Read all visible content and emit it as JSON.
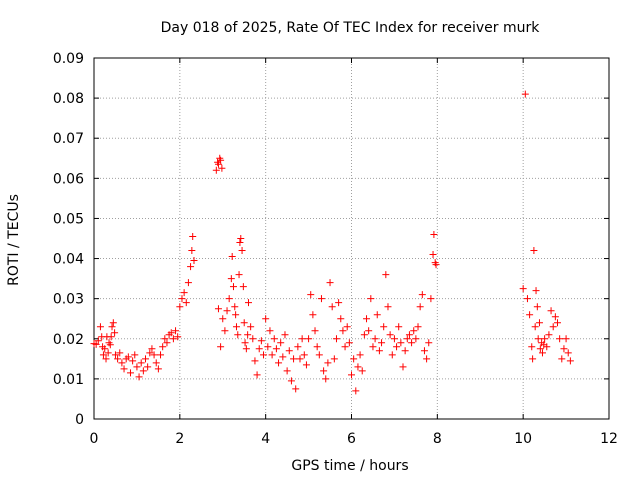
{
  "chart_data": {
    "type": "scatter",
    "title": "Day 018 of 2025, Rate Of TEC Index for receiver murk",
    "xlabel": "GPS time / hours",
    "ylabel": "ROTI / TECUs",
    "xlim": [
      0,
      12
    ],
    "ylim": [
      0,
      0.09
    ],
    "xticks": [
      0,
      2,
      4,
      6,
      8,
      10,
      12
    ],
    "yticks": [
      0,
      0.01,
      0.02,
      0.03,
      0.04,
      0.05,
      0.06,
      0.07,
      0.08,
      0.09
    ],
    "xtick_labels": [
      "0",
      "2",
      "4",
      "6",
      "8",
      "10",
      "12"
    ],
    "ytick_labels": [
      "0",
      "0.01",
      "0.02",
      "0.03",
      "0.04",
      "0.05",
      "0.06",
      "0.07",
      "0.08",
      "0.09"
    ],
    "grid": true,
    "marker": "+",
    "color": "#ff0000",
    "series": [
      {
        "name": "ROTI",
        "points": [
          [
            0.0,
            0.0188
          ],
          [
            0.05,
            0.0186
          ],
          [
            0.1,
            0.0195
          ],
          [
            0.15,
            0.023
          ],
          [
            0.18,
            0.0205
          ],
          [
            0.2,
            0.018
          ],
          [
            0.22,
            0.016
          ],
          [
            0.25,
            0.0175
          ],
          [
            0.28,
            0.015
          ],
          [
            0.3,
            0.0205
          ],
          [
            0.33,
            0.0165
          ],
          [
            0.35,
            0.019
          ],
          [
            0.38,
            0.0185
          ],
          [
            0.4,
            0.0205
          ],
          [
            0.42,
            0.023
          ],
          [
            0.45,
            0.024
          ],
          [
            0.48,
            0.0215
          ],
          [
            0.5,
            0.016
          ],
          [
            0.55,
            0.015
          ],
          [
            0.6,
            0.0165
          ],
          [
            0.65,
            0.014
          ],
          [
            0.7,
            0.0125
          ],
          [
            0.75,
            0.015
          ],
          [
            0.8,
            0.0155
          ],
          [
            0.85,
            0.0115
          ],
          [
            0.9,
            0.0145
          ],
          [
            0.95,
            0.016
          ],
          [
            1.0,
            0.013
          ],
          [
            1.05,
            0.0105
          ],
          [
            1.1,
            0.014
          ],
          [
            1.15,
            0.012
          ],
          [
            1.2,
            0.015
          ],
          [
            1.25,
            0.013
          ],
          [
            1.3,
            0.0165
          ],
          [
            1.35,
            0.0175
          ],
          [
            1.4,
            0.016
          ],
          [
            1.45,
            0.014
          ],
          [
            1.5,
            0.0125
          ],
          [
            1.55,
            0.016
          ],
          [
            1.6,
            0.018
          ],
          [
            1.65,
            0.02
          ],
          [
            1.7,
            0.019
          ],
          [
            1.75,
            0.021
          ],
          [
            1.8,
            0.0215
          ],
          [
            1.85,
            0.02
          ],
          [
            1.9,
            0.022
          ],
          [
            1.95,
            0.0205
          ],
          [
            2.0,
            0.028
          ],
          [
            2.05,
            0.03
          ],
          [
            2.1,
            0.0315
          ],
          [
            2.15,
            0.029
          ],
          [
            2.2,
            0.034
          ],
          [
            2.25,
            0.038
          ],
          [
            2.28,
            0.042
          ],
          [
            2.3,
            0.0455
          ],
          [
            2.33,
            0.0395
          ],
          [
            2.85,
            0.062
          ],
          [
            2.88,
            0.064
          ],
          [
            2.9,
            0.0635
          ],
          [
            2.93,
            0.065
          ],
          [
            2.95,
            0.0645
          ],
          [
            2.98,
            0.0625
          ],
          [
            2.9,
            0.0275
          ],
          [
            2.95,
            0.018
          ],
          [
            3.0,
            0.025
          ],
          [
            3.05,
            0.022
          ],
          [
            3.1,
            0.027
          ],
          [
            3.15,
            0.03
          ],
          [
            3.2,
            0.035
          ],
          [
            3.22,
            0.0405
          ],
          [
            3.25,
            0.033
          ],
          [
            3.28,
            0.028
          ],
          [
            3.3,
            0.026
          ],
          [
            3.32,
            0.023
          ],
          [
            3.35,
            0.021
          ],
          [
            3.38,
            0.036
          ],
          [
            3.4,
            0.044
          ],
          [
            3.42,
            0.045
          ],
          [
            3.45,
            0.042
          ],
          [
            3.48,
            0.033
          ],
          [
            3.5,
            0.024
          ],
          [
            3.52,
            0.019
          ],
          [
            3.55,
            0.0175
          ],
          [
            3.58,
            0.021
          ],
          [
            3.6,
            0.029
          ],
          [
            3.65,
            0.023
          ],
          [
            3.7,
            0.02
          ],
          [
            3.75,
            0.0145
          ],
          [
            3.8,
            0.011
          ],
          [
            3.85,
            0.0175
          ],
          [
            3.9,
            0.0195
          ],
          [
            3.95,
            0.016
          ],
          [
            4.0,
            0.025
          ],
          [
            4.05,
            0.018
          ],
          [
            4.1,
            0.022
          ],
          [
            4.15,
            0.016
          ],
          [
            4.2,
            0.02
          ],
          [
            4.25,
            0.0175
          ],
          [
            4.3,
            0.014
          ],
          [
            4.35,
            0.019
          ],
          [
            4.4,
            0.0155
          ],
          [
            4.45,
            0.021
          ],
          [
            4.5,
            0.012
          ],
          [
            4.55,
            0.017
          ],
          [
            4.6,
            0.0095
          ],
          [
            4.65,
            0.015
          ],
          [
            4.7,
            0.0075
          ],
          [
            4.75,
            0.018
          ],
          [
            4.8,
            0.015
          ],
          [
            4.85,
            0.02
          ],
          [
            4.9,
            0.016
          ],
          [
            4.95,
            0.0135
          ],
          [
            5.0,
            0.02
          ],
          [
            5.05,
            0.031
          ],
          [
            5.1,
            0.026
          ],
          [
            5.15,
            0.022
          ],
          [
            5.2,
            0.018
          ],
          [
            5.25,
            0.016
          ],
          [
            5.3,
            0.03
          ],
          [
            5.35,
            0.012
          ],
          [
            5.4,
            0.01
          ],
          [
            5.45,
            0.014
          ],
          [
            5.5,
            0.034
          ],
          [
            5.55,
            0.028
          ],
          [
            5.6,
            0.015
          ],
          [
            5.65,
            0.02
          ],
          [
            5.7,
            0.029
          ],
          [
            5.75,
            0.025
          ],
          [
            5.8,
            0.022
          ],
          [
            5.85,
            0.018
          ],
          [
            5.9,
            0.023
          ],
          [
            5.95,
            0.019
          ],
          [
            6.0,
            0.011
          ],
          [
            6.05,
            0.015
          ],
          [
            6.1,
            0.007
          ],
          [
            6.15,
            0.013
          ],
          [
            6.2,
            0.016
          ],
          [
            6.25,
            0.012
          ],
          [
            6.3,
            0.021
          ],
          [
            6.35,
            0.025
          ],
          [
            6.4,
            0.022
          ],
          [
            6.45,
            0.03
          ],
          [
            6.5,
            0.018
          ],
          [
            6.55,
            0.02
          ],
          [
            6.6,
            0.026
          ],
          [
            6.65,
            0.017
          ],
          [
            6.7,
            0.019
          ],
          [
            6.75,
            0.023
          ],
          [
            6.8,
            0.036
          ],
          [
            6.85,
            0.028
          ],
          [
            6.9,
            0.021
          ],
          [
            6.95,
            0.016
          ],
          [
            7.0,
            0.02
          ],
          [
            7.05,
            0.018
          ],
          [
            7.1,
            0.023
          ],
          [
            7.15,
            0.019
          ],
          [
            7.2,
            0.013
          ],
          [
            7.25,
            0.017
          ],
          [
            7.3,
            0.02
          ],
          [
            7.35,
            0.021
          ],
          [
            7.4,
            0.019
          ],
          [
            7.45,
            0.022
          ],
          [
            7.5,
            0.02
          ],
          [
            7.55,
            0.023
          ],
          [
            7.6,
            0.028
          ],
          [
            7.65,
            0.031
          ],
          [
            7.7,
            0.017
          ],
          [
            7.75,
            0.015
          ],
          [
            7.8,
            0.019
          ],
          [
            7.85,
            0.03
          ],
          [
            7.9,
            0.041
          ],
          [
            7.92,
            0.046
          ],
          [
            7.95,
            0.039
          ],
          [
            7.97,
            0.0385
          ],
          [
            10.0,
            0.0325
          ],
          [
            10.05,
            0.081
          ],
          [
            10.1,
            0.03
          ],
          [
            10.15,
            0.026
          ],
          [
            10.2,
            0.018
          ],
          [
            10.22,
            0.015
          ],
          [
            10.25,
            0.042
          ],
          [
            10.28,
            0.023
          ],
          [
            10.3,
            0.032
          ],
          [
            10.33,
            0.028
          ],
          [
            10.35,
            0.02
          ],
          [
            10.38,
            0.024
          ],
          [
            10.4,
            0.0175
          ],
          [
            10.43,
            0.019
          ],
          [
            10.45,
            0.0165
          ],
          [
            10.48,
            0.0185
          ],
          [
            10.5,
            0.02
          ],
          [
            10.55,
            0.018
          ],
          [
            10.6,
            0.021
          ],
          [
            10.65,
            0.027
          ],
          [
            10.7,
            0.023
          ],
          [
            10.75,
            0.0255
          ],
          [
            10.8,
            0.024
          ],
          [
            10.85,
            0.02
          ],
          [
            10.9,
            0.015
          ],
          [
            10.95,
            0.0175
          ],
          [
            11.0,
            0.02
          ],
          [
            11.05,
            0.0165
          ],
          [
            11.1,
            0.0145
          ]
        ]
      }
    ]
  }
}
